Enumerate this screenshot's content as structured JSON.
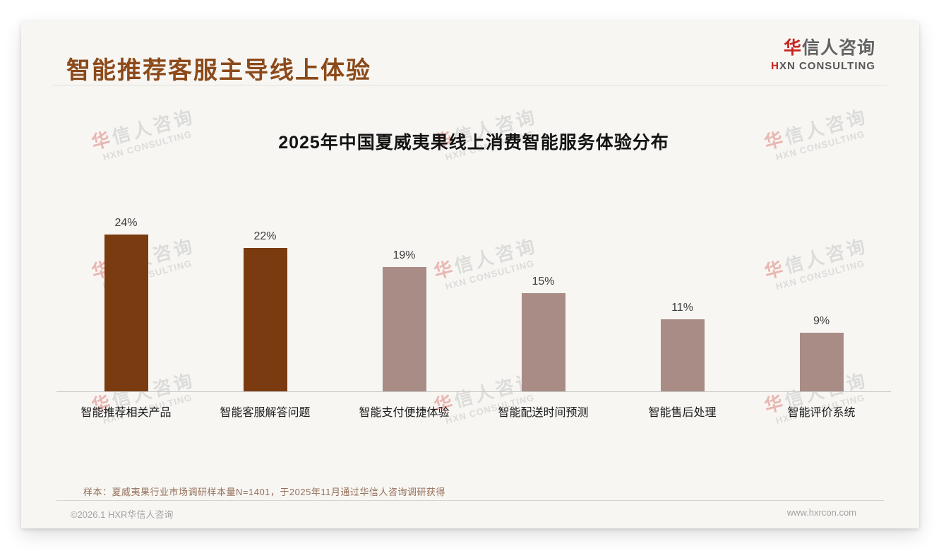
{
  "page": {
    "header": {
      "title": "智能推荐客服主导线上体验"
    },
    "logo": {
      "cn_first": "华",
      "cn_rest": "信人咨询",
      "en_first": "H",
      "en_rest": "XN CONSULTING"
    },
    "watermark": {
      "cn_first": "华",
      "cn_rest": "信人咨询",
      "en": "HXN CONSULTING"
    },
    "footnote": "样本：夏威夷果行业市场调研样本量N=1401，于2025年11月通过华信人咨询调研获得",
    "footer": {
      "copyright": "©2026.1 HXR华信人咨询",
      "website": "www.hxrcon.com"
    }
  },
  "chart_data": {
    "type": "bar",
    "title": "2025年中国夏威夷果线上消费智能服务体验分布",
    "categories": [
      "智能推荐相关产品",
      "智能客服解答问题",
      "智能支付便捷体验",
      "智能配送时间预测",
      "智能售后处理",
      "智能评价系统"
    ],
    "values": [
      24,
      22,
      19,
      15,
      11,
      9
    ],
    "value_labels": [
      "24%",
      "22%",
      "19%",
      "15%",
      "11%",
      "9%"
    ],
    "unit": "%",
    "ylim": [
      0,
      26
    ],
    "grid": false,
    "legend": false,
    "bar_colors": [
      "#7b3b10",
      "#7b3b10",
      "#a98c85",
      "#a98c85",
      "#a98c85",
      "#a98c85"
    ],
    "colors": {
      "highlight_bar": "#7b3b10",
      "normal_bar": "#a98c85",
      "header_accent": "#8c4a1a",
      "logo_red": "#c9231f"
    }
  }
}
